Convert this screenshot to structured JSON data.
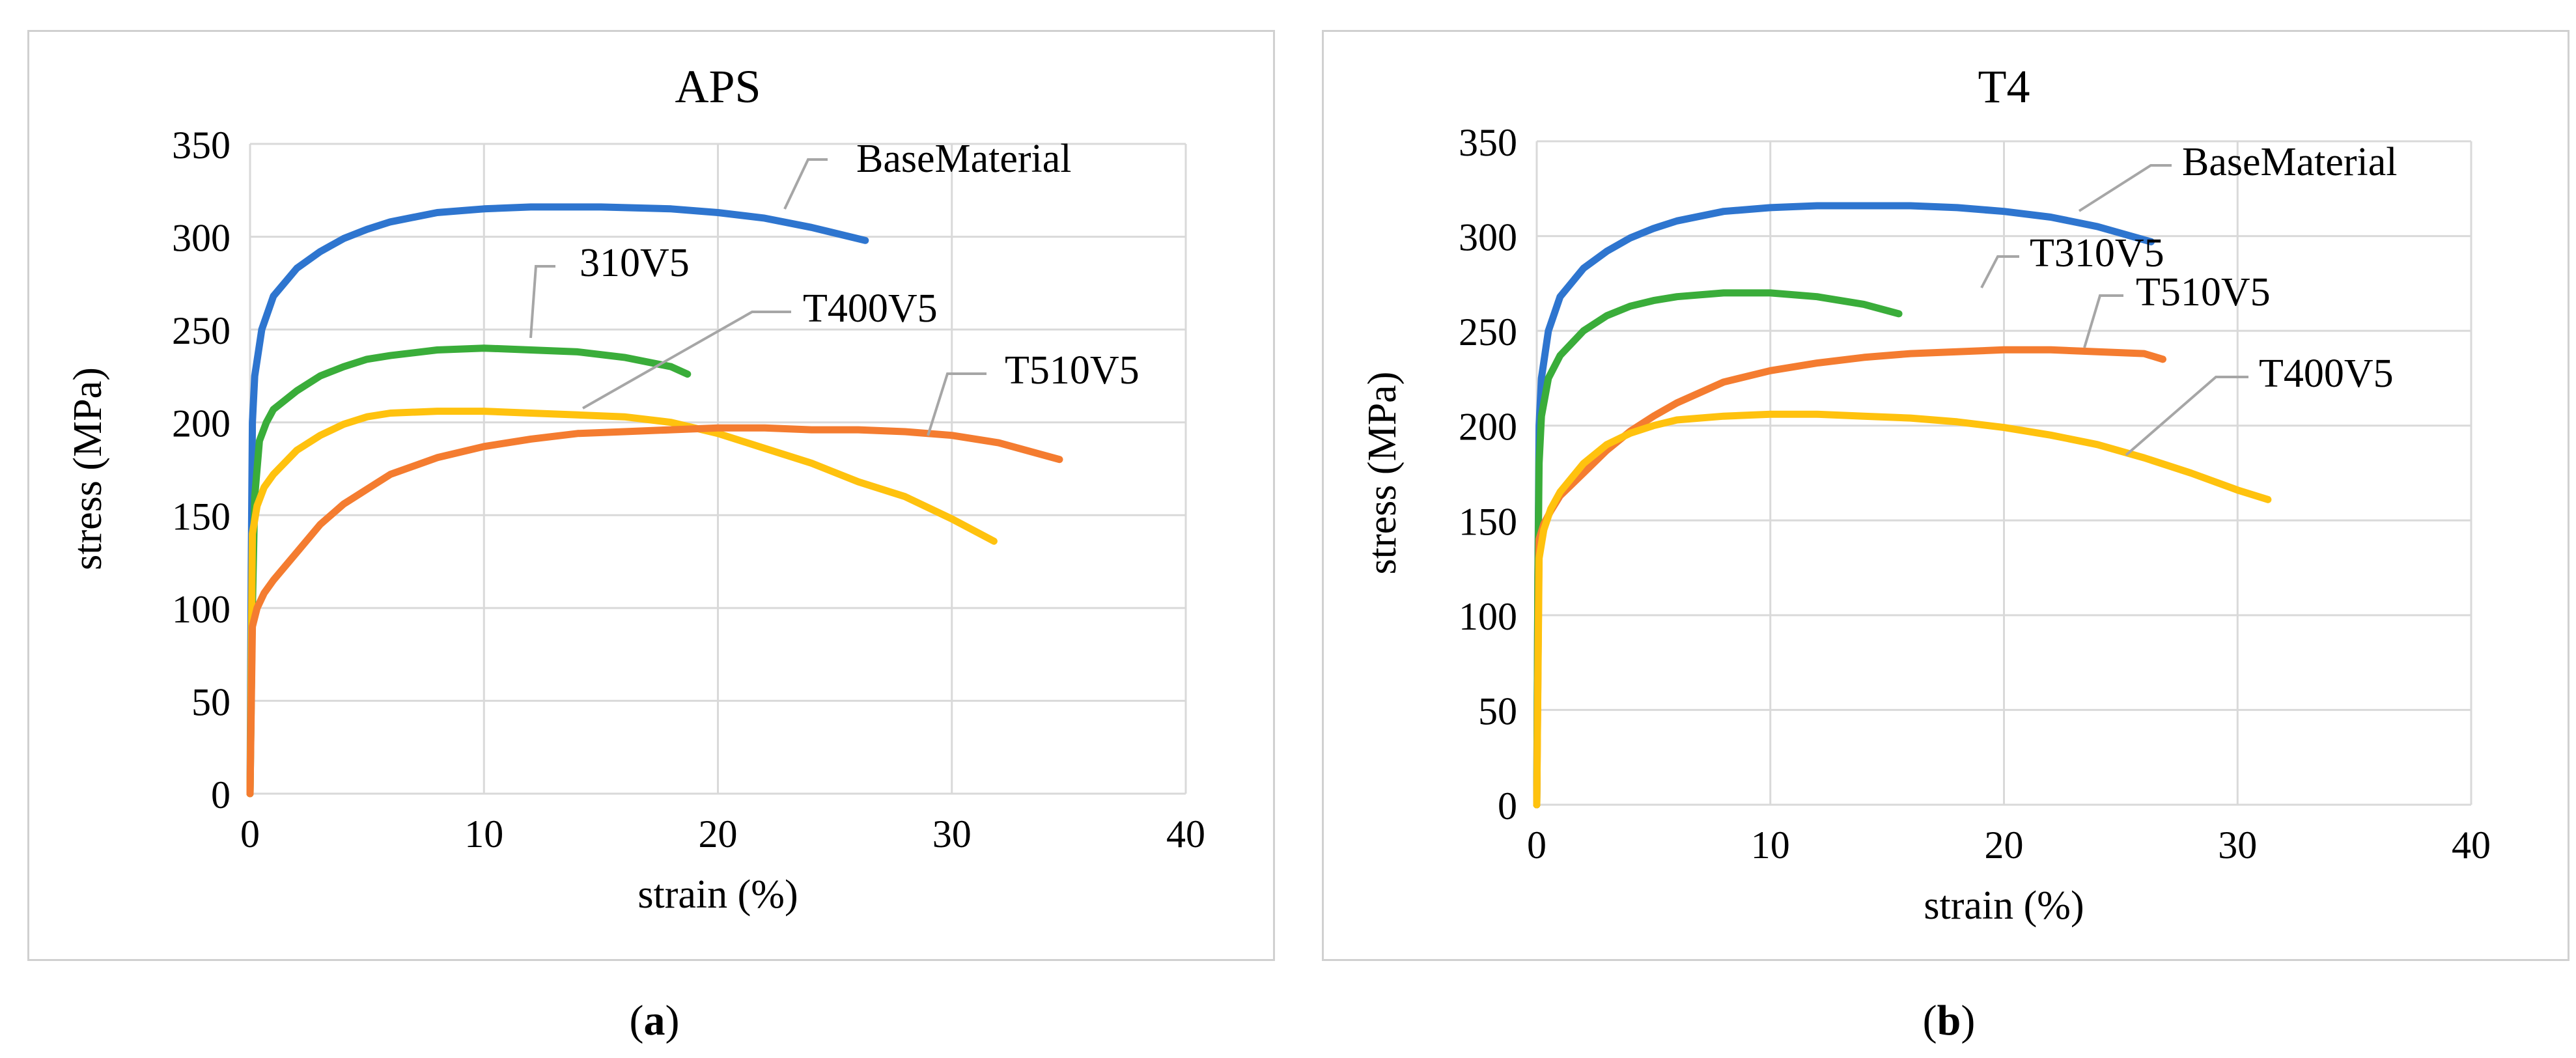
{
  "chart_data": [
    {
      "type": "line",
      "title": "APS",
      "xlabel": "strain (%)",
      "ylabel": "stress (MPa)",
      "xlim": [
        0,
        40
      ],
      "ylim": [
        0,
        350
      ],
      "xticks": [
        0,
        10,
        20,
        30,
        40
      ],
      "yticks": [
        0,
        50,
        100,
        150,
        200,
        250,
        300,
        350
      ],
      "grid": true,
      "caption_letter": "a",
      "series": [
        {
          "name": "BaseMaterial",
          "label": "BaseMaterial",
          "color": "#2e75cf",
          "x": [
            0,
            0.05,
            0.1,
            0.2,
            0.5,
            1,
            2,
            3,
            4,
            5,
            6,
            8,
            10,
            12,
            15,
            18,
            20,
            22,
            24,
            26.3
          ],
          "y": [
            0,
            120,
            200,
            225,
            250,
            268,
            283,
            292,
            299,
            304,
            308,
            313,
            315,
            316,
            316,
            315,
            313,
            310,
            305,
            298
          ]
        },
        {
          "name": "310V5",
          "label": "310V5",
          "color": "#3aad3a",
          "x": [
            0,
            0.1,
            0.2,
            0.4,
            0.7,
            1,
            2,
            3,
            4,
            5,
            6,
            8,
            10,
            12,
            14,
            16,
            18,
            18.7
          ],
          "y": [
            0,
            100,
            160,
            190,
            200,
            207,
            217,
            225,
            230,
            234,
            236,
            239,
            240,
            239,
            238,
            235,
            230,
            226
          ]
        },
        {
          "name": "T400V5",
          "label": "T400V5",
          "color": "#ffc20e",
          "x": [
            0,
            0.1,
            0.3,
            0.6,
            1,
            2,
            3,
            4,
            5,
            6,
            8,
            10,
            12,
            14,
            16,
            18,
            20,
            22,
            24,
            26,
            28,
            30,
            31.8
          ],
          "y": [
            0,
            140,
            155,
            165,
            172,
            185,
            193,
            199,
            203,
            205,
            206,
            206,
            205,
            204,
            203,
            200,
            194,
            186,
            178,
            168,
            160,
            148,
            136
          ]
        },
        {
          "name": "T510V5",
          "label": "T510V5",
          "color": "#f47c30",
          "x": [
            0,
            0.1,
            0.3,
            0.6,
            1,
            2,
            3,
            4,
            5,
            6,
            8,
            10,
            12,
            14,
            16,
            18,
            20,
            22,
            24,
            26,
            28,
            30,
            32,
            34.6
          ],
          "y": [
            0,
            90,
            100,
            108,
            115,
            130,
            145,
            156,
            164,
            172,
            181,
            187,
            191,
            194,
            195,
            196,
            197,
            197,
            196,
            196,
            195,
            193,
            189,
            180
          ]
        }
      ],
      "annotations": [
        {
          "series": "BaseMaterial",
          "text": "BaseMaterial"
        },
        {
          "series": "310V5",
          "text": "310V5"
        },
        {
          "series": "T400V5",
          "text": "T400V5"
        },
        {
          "series": "T510V5",
          "text": "T510V5"
        }
      ]
    },
    {
      "type": "line",
      "title": "T4",
      "xlabel": "strain (%)",
      "ylabel": "stress (MPa)",
      "xlim": [
        0,
        40
      ],
      "ylim": [
        0,
        350
      ],
      "xticks": [
        0,
        10,
        20,
        30,
        40
      ],
      "yticks": [
        0,
        50,
        100,
        150,
        200,
        250,
        300,
        350
      ],
      "grid": true,
      "caption_letter": "b",
      "series": [
        {
          "name": "BaseMaterial",
          "label": "BaseMaterial",
          "color": "#2e75cf",
          "x": [
            0,
            0.05,
            0.1,
            0.2,
            0.5,
            1,
            2,
            3,
            4,
            5,
            6,
            8,
            10,
            12,
            14,
            16,
            18,
            20,
            22,
            24,
            26.3
          ],
          "y": [
            0,
            120,
            200,
            225,
            250,
            268,
            283,
            292,
            299,
            304,
            308,
            313,
            315,
            316,
            316,
            316,
            315,
            313,
            310,
            305,
            297
          ]
        },
        {
          "name": "T310V5",
          "label": "T310V5",
          "color": "#3aad3a",
          "x": [
            0,
            0.05,
            0.1,
            0.2,
            0.5,
            1,
            2,
            3,
            4,
            5,
            6,
            8,
            10,
            12,
            14,
            15.5
          ],
          "y": [
            0,
            120,
            180,
            205,
            225,
            237,
            250,
            258,
            263,
            266,
            268,
            270,
            270,
            268,
            264,
            259
          ]
        },
        {
          "name": "T510V5",
          "label": "T510V5",
          "color": "#f47c30",
          "x": [
            0,
            0.1,
            0.3,
            0.6,
            1,
            2,
            3,
            4,
            5,
            6,
            8,
            10,
            12,
            14,
            16,
            18,
            20,
            22,
            24,
            26,
            26.8
          ],
          "y": [
            0,
            140,
            148,
            155,
            163,
            175,
            187,
            197,
            205,
            212,
            223,
            229,
            233,
            236,
            238,
            239,
            240,
            240,
            239,
            238,
            235
          ]
        },
        {
          "name": "T400V5",
          "label": "T400V5",
          "color": "#ffc20e",
          "x": [
            0,
            0.1,
            0.3,
            0.6,
            1,
            2,
            3,
            4,
            5,
            6,
            8,
            10,
            12,
            14,
            16,
            18,
            20,
            22,
            24,
            26,
            28,
            30,
            31.3
          ],
          "y": [
            0,
            130,
            145,
            156,
            165,
            180,
            190,
            196,
            200,
            203,
            205,
            206,
            206,
            205,
            204,
            202,
            199,
            195,
            190,
            183,
            175,
            166,
            161
          ]
        }
      ],
      "annotations": [
        {
          "series": "BaseMaterial",
          "text": "BaseMaterial"
        },
        {
          "series": "T310V5",
          "text": "T310V5"
        },
        {
          "series": "T510V5",
          "text": "T510V5"
        },
        {
          "series": "T400V5",
          "text": "T400V5"
        }
      ]
    }
  ]
}
